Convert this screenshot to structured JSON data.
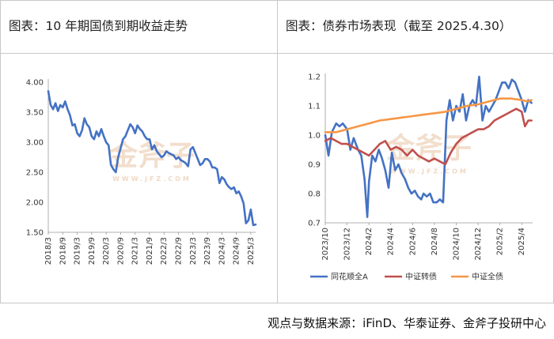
{
  "left_panel": {
    "title": "图表：10 年期国债到期收益走势"
  },
  "right_panel": {
    "title": "图表：债券市场表现（截至 2025.4.30）"
  },
  "watermark": {
    "brand": "金斧子",
    "url": "WWW.JFZ.COM",
    "color": "#f0d9c4"
  },
  "source": "观点与数据来源：iFinD、华泰证券、金斧子投研中心",
  "chart_data": [
    {
      "type": "line",
      "title": "图表：10 年期国债到期收益走势",
      "ylim": [
        1.5,
        4.0
      ],
      "yticks": [
        "4.00",
        "3.50",
        "3.00",
        "2.50",
        "2.00",
        "1.50"
      ],
      "xticks": [
        "2018/3",
        "2018/9",
        "2019/3",
        "2019/9",
        "2020/3",
        "2020/9",
        "2021/3",
        "2021/9",
        "2022/3",
        "2022/9",
        "2023/3",
        "2023/9",
        "2024/3",
        "2024/9",
        "2025/3"
      ],
      "xlim_months": 86,
      "series": [
        {
          "color": "#4472c4",
          "x": [
            0,
            1,
            2,
            3,
            4,
            5,
            6,
            7,
            8,
            9,
            10,
            11,
            12,
            13,
            14,
            15,
            16,
            17,
            18,
            19,
            20,
            21,
            22,
            23,
            24,
            25,
            26,
            27,
            28,
            29,
            30,
            31,
            32,
            33,
            34,
            35,
            36,
            37,
            38,
            39,
            40,
            41,
            42,
            43,
            44,
            45,
            46,
            47,
            48,
            49,
            50,
            51,
            52,
            53,
            54,
            55,
            56,
            57,
            58,
            59,
            60,
            61,
            62,
            63,
            64,
            65,
            66,
            67,
            68,
            69,
            70,
            71,
            72,
            73,
            74,
            75,
            76,
            77,
            78,
            79,
            80,
            81,
            82,
            83,
            84,
            85,
            86
          ],
          "values": [
            3.85,
            3.62,
            3.55,
            3.65,
            3.52,
            3.62,
            3.58,
            3.68,
            3.55,
            3.45,
            3.28,
            3.3,
            3.15,
            3.1,
            3.2,
            3.4,
            3.3,
            3.25,
            3.1,
            3.05,
            3.18,
            3.1,
            3.22,
            3.1,
            3.0,
            2.95,
            2.62,
            2.55,
            2.5,
            2.75,
            2.9,
            3.05,
            3.1,
            3.2,
            3.3,
            3.25,
            3.15,
            3.28,
            3.22,
            3.18,
            3.1,
            3.05,
            3.05,
            2.88,
            2.95,
            2.85,
            2.8,
            2.75,
            2.78,
            2.85,
            2.82,
            2.8,
            2.78,
            2.72,
            2.75,
            2.7,
            2.68,
            2.65,
            2.6,
            2.88,
            2.92,
            2.82,
            2.72,
            2.62,
            2.65,
            2.72,
            2.72,
            2.68,
            2.58,
            2.58,
            2.55,
            2.32,
            2.42,
            2.38,
            2.3,
            2.25,
            2.22,
            2.25,
            2.15,
            2.18,
            2.1,
            1.98,
            1.65,
            1.7,
            1.88,
            1.62,
            1.63
          ]
        }
      ]
    },
    {
      "type": "line",
      "title": "图表：债券市场表现（截至 2025.4.30）",
      "ylim": [
        0.7,
        1.2
      ],
      "yticks": [
        "1.2",
        "1.1",
        "1.0",
        "0.9",
        "0.8",
        "0.7"
      ],
      "xticks": [
        "2023/10",
        "2023/12",
        "2024/2",
        "2024/4",
        "2024/6",
        "2024/8",
        "2024/10",
        "2024/12",
        "2025/2",
        "2025/4"
      ],
      "xlim_months": 19,
      "legend": "bottom",
      "series": [
        {
          "name": "同花顺全A",
          "color": "#4472c4",
          "x": [
            0,
            0.3,
            0.6,
            1.0,
            1.3,
            1.6,
            2.0,
            2.3,
            2.6,
            3.0,
            3.3,
            3.6,
            3.85,
            4.0,
            4.3,
            4.6,
            4.9,
            5.2,
            5.5,
            5.8,
            6.1,
            6.4,
            6.7,
            7.0,
            7.3,
            7.6,
            7.9,
            8.2,
            8.5,
            8.8,
            9.0,
            9.3,
            9.6,
            9.9,
            10.2,
            10.5,
            10.8,
            11.1,
            11.4,
            11.7,
            12.0,
            12.3,
            12.6,
            12.9,
            13.2,
            13.5,
            13.8,
            14.1,
            14.4,
            14.7,
            15.0,
            15.3,
            15.6,
            15.9,
            16.2,
            16.5,
            16.8,
            17.1,
            17.4,
            17.7,
            18.0,
            18.3,
            18.6,
            18.9
          ],
          "values": [
            1.0,
            0.93,
            1.01,
            1.04,
            1.03,
            1.04,
            1.02,
            0.95,
            0.99,
            0.95,
            0.93,
            0.85,
            0.72,
            0.84,
            0.93,
            0.91,
            0.95,
            0.92,
            0.88,
            0.82,
            0.94,
            0.88,
            0.9,
            0.87,
            0.85,
            0.82,
            0.8,
            0.81,
            0.79,
            0.78,
            0.8,
            0.79,
            0.8,
            0.77,
            0.77,
            0.78,
            0.77,
            1.05,
            1.12,
            1.05,
            1.1,
            1.08,
            1.14,
            1.05,
            1.1,
            1.12,
            1.1,
            1.2,
            1.05,
            1.1,
            1.08,
            1.1,
            1.12,
            1.15,
            1.18,
            1.18,
            1.16,
            1.19,
            1.18,
            1.15,
            1.12,
            1.08,
            1.12,
            1.11
          ]
        },
        {
          "name": "中证转债",
          "color": "#c0504d",
          "x": [
            0,
            0.5,
            1.0,
            1.5,
            2.0,
            2.5,
            3.0,
            3.5,
            4.0,
            4.5,
            5.0,
            5.5,
            6.0,
            6.5,
            7.0,
            7.5,
            8.0,
            8.5,
            9.0,
            9.5,
            10.0,
            10.5,
            11.0,
            11.5,
            12.0,
            12.5,
            13.0,
            13.5,
            14.0,
            14.5,
            15.0,
            15.5,
            16.0,
            16.5,
            17.0,
            17.5,
            18.0,
            18.3,
            18.6,
            18.9
          ],
          "values": [
            0.98,
            0.99,
            0.98,
            0.97,
            0.97,
            0.96,
            0.95,
            0.94,
            0.93,
            0.95,
            0.97,
            0.98,
            0.95,
            0.96,
            0.95,
            0.93,
            0.95,
            0.93,
            0.92,
            0.91,
            0.92,
            0.91,
            0.9,
            0.94,
            0.97,
            0.99,
            1.0,
            1.01,
            1.02,
            1.02,
            1.03,
            1.05,
            1.06,
            1.07,
            1.08,
            1.09,
            1.08,
            1.03,
            1.05,
            1.05
          ]
        },
        {
          "name": "中证全债",
          "color": "#f79646",
          "x": [
            0,
            1,
            2,
            3,
            4,
            5,
            6,
            7,
            8,
            9,
            10,
            11,
            12,
            13,
            14,
            15,
            16,
            17,
            18,
            18.5,
            18.9
          ],
          "values": [
            1.01,
            1.01,
            1.02,
            1.03,
            1.04,
            1.05,
            1.055,
            1.06,
            1.065,
            1.07,
            1.075,
            1.08,
            1.09,
            1.1,
            1.105,
            1.115,
            1.125,
            1.125,
            1.12,
            1.115,
            1.12
          ]
        }
      ]
    }
  ]
}
